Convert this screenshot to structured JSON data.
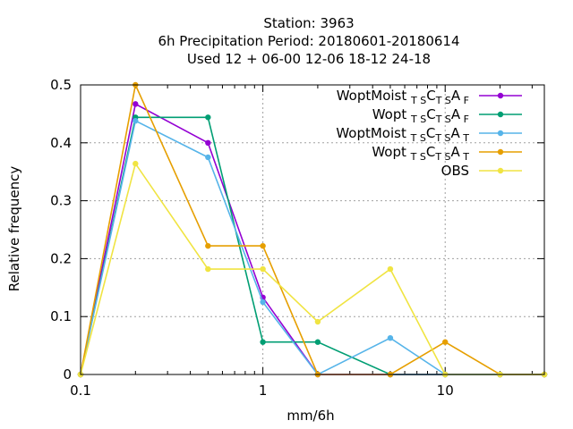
{
  "chart_data": {
    "type": "line",
    "title_lines": [
      "Station:     3963",
      "6h Precipitation  Period: 20180601-20180614",
      "Used  12 + 06-00 12-06 18-12 24-18"
    ],
    "xlabel": "mm/6h",
    "ylabel": "Relative frequency",
    "xscale": "log",
    "xlim": [
      0.1,
      35
    ],
    "ylim": [
      0,
      0.5
    ],
    "x_ticks": [
      {
        "value": 0.1,
        "label": "0.1"
      },
      {
        "value": 1,
        "label": "1"
      },
      {
        "value": 10,
        "label": "10"
      }
    ],
    "y_ticks": [
      {
        "value": 0,
        "label": "0"
      },
      {
        "value": 0.1,
        "label": "0.1"
      },
      {
        "value": 0.2,
        "label": "0.2"
      },
      {
        "value": 0.3,
        "label": "0.3"
      },
      {
        "value": 0.4,
        "label": "0.4"
      },
      {
        "value": 0.5,
        "label": "0.5"
      }
    ],
    "grid": true,
    "legend_position": "top-right",
    "x": [
      0.1,
      0.2,
      0.5,
      1,
      2,
      5,
      10,
      20,
      35
    ],
    "series": [
      {
        "name": "WoptMoist",
        "sub1": "T S",
        "mid": "C",
        "sub2": "T S",
        "mid2": "A",
        "sub3": "F",
        "color": "#9400d3",
        "values": [
          0,
          0.467,
          0.4,
          0.133,
          0,
          0,
          0,
          0,
          0
        ]
      },
      {
        "name": "Wopt",
        "sub1": "T S",
        "mid": "C",
        "sub2": "T S",
        "mid2": "A",
        "sub3": "F",
        "color": "#009e73",
        "values": [
          0,
          0.444,
          0.444,
          0.056,
          0.056,
          0,
          0,
          0,
          0
        ]
      },
      {
        "name": "WoptMoist",
        "sub1": "T S",
        "mid": "C",
        "sub2": "T S",
        "mid2": "A",
        "sub3": "T",
        "color": "#56b4e9",
        "values": [
          0,
          0.438,
          0.375,
          0.125,
          0,
          0.063,
          0,
          0,
          0
        ]
      },
      {
        "name": "Wopt",
        "sub1": "T S",
        "mid": "C",
        "sub2": "T S",
        "mid2": "A",
        "sub3": "T",
        "color": "#e69f00",
        "values": [
          0,
          0.5,
          0.222,
          0.222,
          0,
          0,
          0.056,
          0,
          0
        ]
      },
      {
        "name": "OBS",
        "color": "#f0e442",
        "values": [
          0,
          0.364,
          0.182,
          0.182,
          0.091,
          0.182,
          0,
          0,
          0
        ]
      }
    ]
  }
}
